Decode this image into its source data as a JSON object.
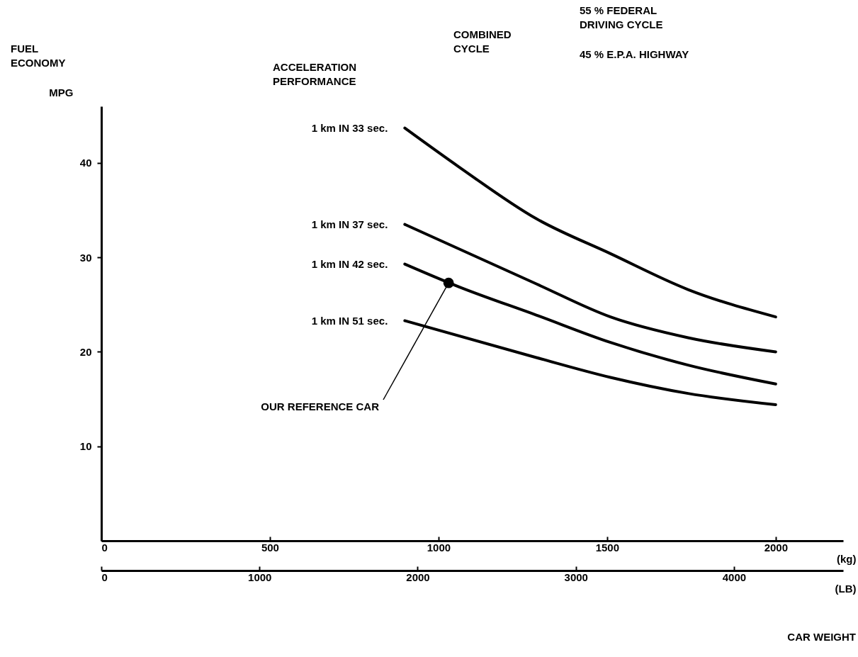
{
  "chart_data": {
    "type": "line",
    "ylabel": "MPG",
    "xlabel": "(kg)",
    "x2label": "(LB)",
    "xlim": [
      0,
      2200
    ],
    "xticks": [
      0,
      500,
      1000,
      1500,
      2000
    ],
    "x2lim": [
      0,
      4690
    ],
    "x2ticks": [
      0,
      1000,
      2000,
      3000,
      4000
    ],
    "ylim": [
      0,
      46
    ],
    "yticks": [
      10,
      20,
      30,
      40
    ],
    "grid": false,
    "line_style": "solid",
    "series": [
      {
        "name": "1 km IN 33 sec.",
        "color": "#000000",
        "x": [
          900,
          1060,
          1290,
          1510,
          1740,
          2000
        ],
        "values": [
          43.7,
          39.6,
          34.1,
          30.4,
          26.6,
          23.7
        ]
      },
      {
        "name": "1 km IN 37 sec.",
        "color": "#000000",
        "x": [
          900,
          1290,
          1510,
          1740,
          2000
        ],
        "values": [
          33.5,
          27.2,
          23.7,
          21.5,
          20.0
        ]
      },
      {
        "name": "1 km IN 42 sec.",
        "color": "#000000",
        "x": [
          900,
          1060,
          1290,
          1510,
          1740,
          2000
        ],
        "values": [
          29.3,
          26.9,
          23.9,
          21.0,
          18.6,
          16.6
        ]
      },
      {
        "name": "1 km IN 51 sec.",
        "color": "#000000",
        "x": [
          900,
          1290,
          1510,
          1740,
          2000
        ],
        "values": [
          23.3,
          19.4,
          17.3,
          15.6,
          14.4
        ]
      },
      {
        "type": "scatter",
        "marker": "circle",
        "color": "#000000",
        "x": [
          1030
        ],
        "values": [
          27.3
        ]
      }
    ],
    "annotations": [
      "FUEL\nECONOMY",
      "ACCELERATION\nPERFORMANCE",
      "COMBINED\nCYCLE",
      "55 % FEDERAL\n       DRIVING CYCLE",
      "45 % E.P.A. HIGHWAY",
      "CAR WEIGHT",
      {
        "text": "OUR REFERENCE CAR",
        "x": 1030,
        "y": 27.3
      }
    ]
  }
}
